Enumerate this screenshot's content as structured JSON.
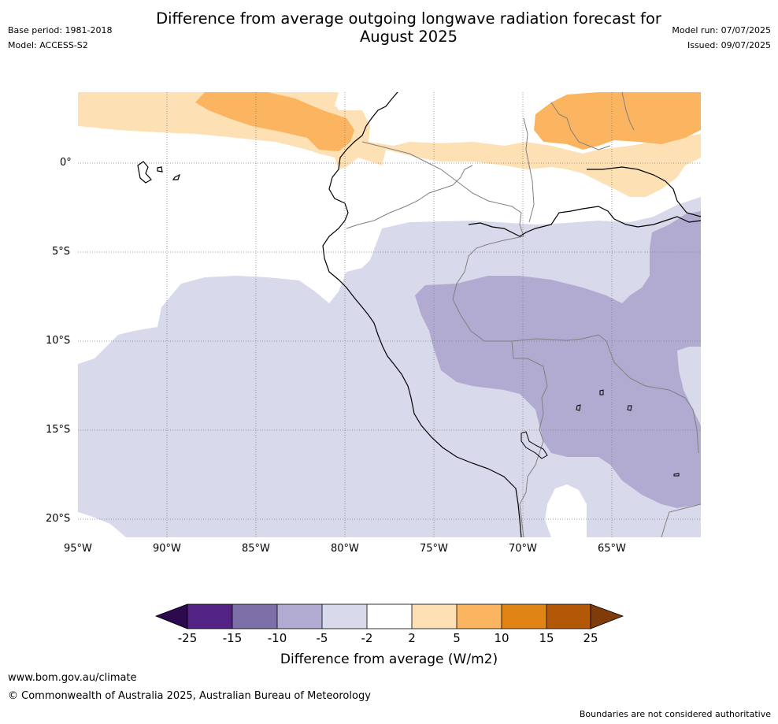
{
  "header": {
    "title_line1": "Difference from average outgoing longwave radiation forecast for",
    "title_line2": "August 2025",
    "base_period": "Base period: 1981-2018",
    "model": "Model: ACCESS-S2",
    "model_run": "Model run: 07/07/2025",
    "issued": "Issued: 09/07/2025"
  },
  "map": {
    "lat_labels": [
      "0°",
      "5°S",
      "10°S",
      "15°S",
      "20°S"
    ],
    "lon_labels": [
      "95°W",
      "90°W",
      "85°W",
      "80°W",
      "75°W",
      "70°W",
      "65°W"
    ],
    "colors": {
      "strong_negative_25": "#2d0a4e",
      "neg_15_25": "#522285",
      "neg_10_15": "#7d6fa8",
      "neg_5_10": "#b1aad1",
      "neg_2_5": "#d8d9ea",
      "neutral": "#ffffff",
      "pos_2_5": "#fde0b3",
      "pos_5_10": "#fbb45f",
      "pos_10_15": "#e08415",
      "pos_15_25": "#b35806",
      "strong_positive_25": "#7f3b08",
      "coastline": "#000000",
      "border": "#808080",
      "grid": "#808080"
    }
  },
  "colorbar": {
    "labels": [
      "-25",
      "-15",
      "-10",
      "-5",
      "-2",
      "2",
      "5",
      "10",
      "15",
      "25"
    ],
    "title": "Difference from average (W/m2)"
  },
  "footer": {
    "url": "www.bom.gov.au/climate",
    "copyright": "© Commonwealth of Australia 2025, Australian Bureau of Meteorology",
    "disclaimer": "Boundaries are not considered authoritative"
  }
}
